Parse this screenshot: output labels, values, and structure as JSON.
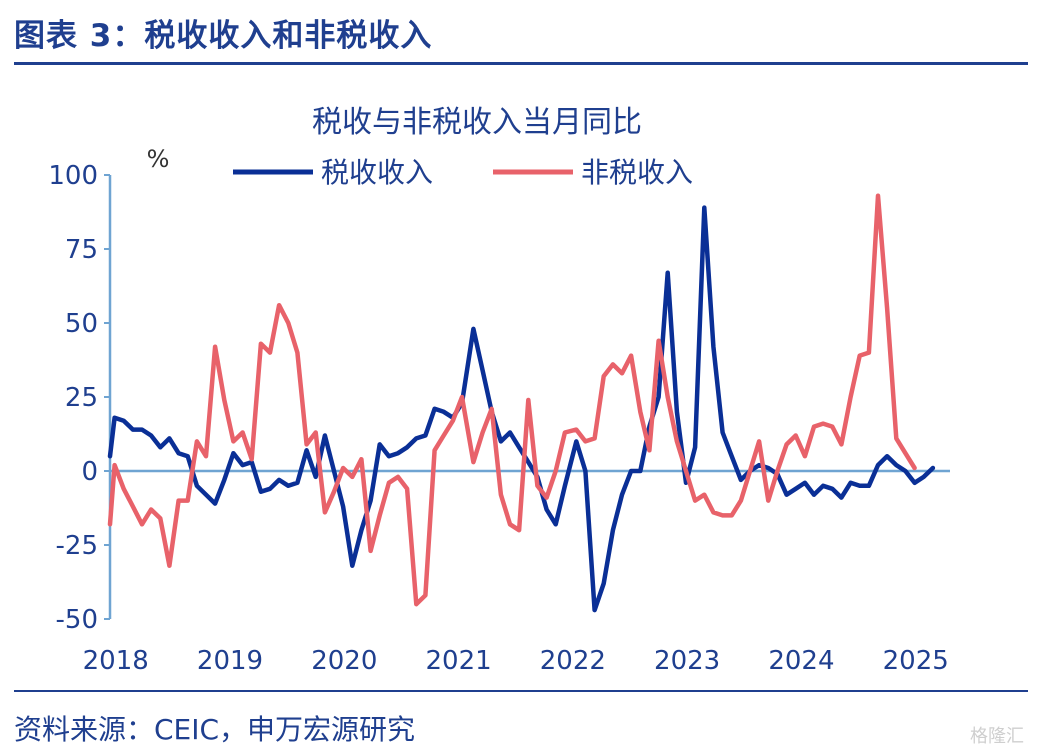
{
  "header": {
    "title": "图表 3：税收收入和非税收入"
  },
  "footer": {
    "source": "资料来源：CEIC，申万宏源研究",
    "watermark": "格隆汇"
  },
  "colors": {
    "navy": "#1f3f8f",
    "tax": "#0a2f96",
    "nontax": "#e8626a",
    "axis": "#6fa4d2"
  },
  "chart_data": {
    "type": "line",
    "title": "税收与非税收入当月同比",
    "ylabel": "%",
    "ylim": [
      -50,
      100
    ],
    "yticks": [
      100,
      75,
      50,
      25,
      0,
      -25,
      -50
    ],
    "xlim": [
      2018.0,
      2025.35
    ],
    "xticks": [
      "2018",
      "2019",
      "2020",
      "2021",
      "2022",
      "2023",
      "2024",
      "2025"
    ],
    "legend_position": "top-center",
    "grid": false,
    "series": [
      {
        "name": "税收收入",
        "color": "#0a2f96",
        "points": [
          [
            2018.0,
            5
          ],
          [
            2018.04,
            18
          ],
          [
            2018.12,
            17
          ],
          [
            2018.2,
            14
          ],
          [
            2018.28,
            14
          ],
          [
            2018.36,
            12
          ],
          [
            2018.44,
            8
          ],
          [
            2018.52,
            11
          ],
          [
            2018.6,
            6
          ],
          [
            2018.68,
            5
          ],
          [
            2018.76,
            -5
          ],
          [
            2018.84,
            -8
          ],
          [
            2018.92,
            -11
          ],
          [
            2019.0,
            -3
          ],
          [
            2019.08,
            6
          ],
          [
            2019.16,
            2
          ],
          [
            2019.24,
            3
          ],
          [
            2019.32,
            -7
          ],
          [
            2019.4,
            -6
          ],
          [
            2019.48,
            -3
          ],
          [
            2019.56,
            -5
          ],
          [
            2019.64,
            -4
          ],
          [
            2019.72,
            7
          ],
          [
            2019.8,
            -2
          ],
          [
            2019.88,
            12
          ],
          [
            2019.96,
            0
          ],
          [
            2020.04,
            -12
          ],
          [
            2020.12,
            -32
          ],
          [
            2020.2,
            -20
          ],
          [
            2020.28,
            -10
          ],
          [
            2020.36,
            9
          ],
          [
            2020.44,
            5
          ],
          [
            2020.52,
            6
          ],
          [
            2020.6,
            8
          ],
          [
            2020.68,
            11
          ],
          [
            2020.76,
            12
          ],
          [
            2020.84,
            21
          ],
          [
            2020.92,
            20
          ],
          [
            2021.0,
            18
          ],
          [
            2021.08,
            23
          ],
          [
            2021.18,
            48
          ],
          [
            2021.26,
            34
          ],
          [
            2021.34,
            20
          ],
          [
            2021.42,
            10
          ],
          [
            2021.5,
            13
          ],
          [
            2021.58,
            8
          ],
          [
            2021.66,
            3
          ],
          [
            2021.74,
            -2
          ],
          [
            2021.82,
            -13
          ],
          [
            2021.9,
            -18
          ],
          [
            2021.98,
            -5
          ],
          [
            2022.08,
            10
          ],
          [
            2022.16,
            0
          ],
          [
            2022.24,
            -47
          ],
          [
            2022.32,
            -38
          ],
          [
            2022.4,
            -20
          ],
          [
            2022.48,
            -8
          ],
          [
            2022.56,
            0
          ],
          [
            2022.64,
            0
          ],
          [
            2022.72,
            15
          ],
          [
            2022.8,
            25
          ],
          [
            2022.88,
            67
          ],
          [
            2022.96,
            20
          ],
          [
            2023.04,
            -4
          ],
          [
            2023.12,
            8
          ],
          [
            2023.2,
            89
          ],
          [
            2023.28,
            42
          ],
          [
            2023.36,
            13
          ],
          [
            2023.44,
            5
          ],
          [
            2023.52,
            -3
          ],
          [
            2023.6,
            0
          ],
          [
            2023.68,
            2
          ],
          [
            2023.76,
            1
          ],
          [
            2023.84,
            -1
          ],
          [
            2023.92,
            -8
          ],
          [
            2024.0,
            -6
          ],
          [
            2024.08,
            -4
          ],
          [
            2024.16,
            -8
          ],
          [
            2024.24,
            -5
          ],
          [
            2024.32,
            -6
          ],
          [
            2024.4,
            -9
          ],
          [
            2024.48,
            -4
          ],
          [
            2024.56,
            -5
          ],
          [
            2024.64,
            -5
          ],
          [
            2024.72,
            2
          ],
          [
            2024.8,
            5
          ],
          [
            2024.88,
            2
          ],
          [
            2024.96,
            0
          ],
          [
            2025.04,
            -4
          ],
          [
            2025.12,
            -2
          ],
          [
            2025.2,
            1
          ]
        ]
      },
      {
        "name": "非税收入",
        "color": "#e8626a",
        "points": [
          [
            2018.0,
            -18
          ],
          [
            2018.04,
            2
          ],
          [
            2018.12,
            -6
          ],
          [
            2018.2,
            -12
          ],
          [
            2018.28,
            -18
          ],
          [
            2018.36,
            -13
          ],
          [
            2018.44,
            -16
          ],
          [
            2018.52,
            -32
          ],
          [
            2018.6,
            -10
          ],
          [
            2018.68,
            -10
          ],
          [
            2018.76,
            10
          ],
          [
            2018.84,
            5
          ],
          [
            2018.92,
            42
          ],
          [
            2019.0,
            24
          ],
          [
            2019.08,
            10
          ],
          [
            2019.16,
            13
          ],
          [
            2019.24,
            4
          ],
          [
            2019.32,
            43
          ],
          [
            2019.4,
            40
          ],
          [
            2019.48,
            56
          ],
          [
            2019.56,
            50
          ],
          [
            2019.64,
            40
          ],
          [
            2019.72,
            9
          ],
          [
            2019.8,
            13
          ],
          [
            2019.88,
            -14
          ],
          [
            2019.96,
            -7
          ],
          [
            2020.04,
            1
          ],
          [
            2020.12,
            -2
          ],
          [
            2020.2,
            4
          ],
          [
            2020.28,
            -27
          ],
          [
            2020.36,
            -15
          ],
          [
            2020.44,
            -4
          ],
          [
            2020.52,
            -2
          ],
          [
            2020.6,
            -6
          ],
          [
            2020.68,
            -45
          ],
          [
            2020.76,
            -42
          ],
          [
            2020.84,
            7
          ],
          [
            2020.92,
            12
          ],
          [
            2021.0,
            17
          ],
          [
            2021.08,
            25
          ],
          [
            2021.18,
            3
          ],
          [
            2021.26,
            13
          ],
          [
            2021.34,
            21
          ],
          [
            2021.42,
            -8
          ],
          [
            2021.5,
            -18
          ],
          [
            2021.58,
            -20
          ],
          [
            2021.66,
            24
          ],
          [
            2021.74,
            -5
          ],
          [
            2021.82,
            -9
          ],
          [
            2021.9,
            0
          ],
          [
            2021.98,
            13
          ],
          [
            2022.08,
            14
          ],
          [
            2022.16,
            10
          ],
          [
            2022.24,
            11
          ],
          [
            2022.32,
            32
          ],
          [
            2022.4,
            36
          ],
          [
            2022.48,
            33
          ],
          [
            2022.56,
            39
          ],
          [
            2022.64,
            20
          ],
          [
            2022.72,
            7
          ],
          [
            2022.8,
            44
          ],
          [
            2022.88,
            25
          ],
          [
            2022.96,
            10
          ],
          [
            2023.04,
            0
          ],
          [
            2023.12,
            -10
          ],
          [
            2023.2,
            -8
          ],
          [
            2023.28,
            -14
          ],
          [
            2023.36,
            -15
          ],
          [
            2023.44,
            -15
          ],
          [
            2023.52,
            -10
          ],
          [
            2023.6,
            0
          ],
          [
            2023.68,
            10
          ],
          [
            2023.76,
            -10
          ],
          [
            2023.84,
            0
          ],
          [
            2023.92,
            9
          ],
          [
            2024.0,
            12
          ],
          [
            2024.08,
            5
          ],
          [
            2024.16,
            15
          ],
          [
            2024.24,
            16
          ],
          [
            2024.32,
            15
          ],
          [
            2024.4,
            9
          ],
          [
            2024.48,
            25
          ],
          [
            2024.56,
            39
          ],
          [
            2024.64,
            40
          ],
          [
            2024.72,
            93
          ],
          [
            2024.8,
            55
          ],
          [
            2024.88,
            11
          ],
          [
            2024.96,
            6
          ],
          [
            2025.04,
            1
          ]
        ]
      }
    ]
  }
}
